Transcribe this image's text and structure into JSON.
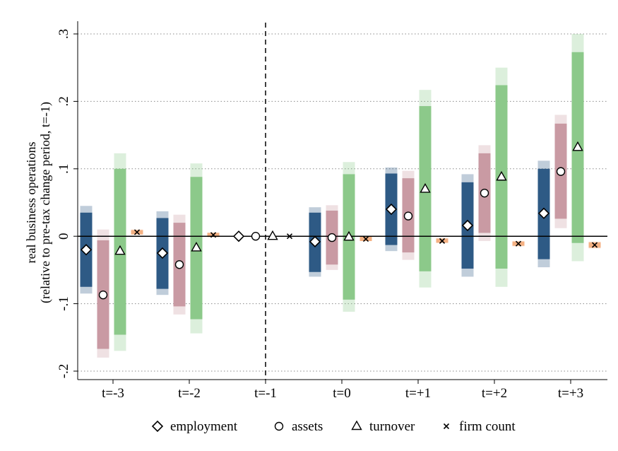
{
  "chart_data": {
    "type": "bar",
    "title": "",
    "xlabel": "",
    "ylabel": "real business operations",
    "ylabel_line2": "(relative to pre-tax change period, t=-1)",
    "ylim": [
      -0.2,
      0.3
    ],
    "yticks": [
      {
        "value": 0.3,
        "label": ".3"
      },
      {
        "value": 0.2,
        "label": ".2"
      },
      {
        "value": 0.1,
        "label": ".1"
      },
      {
        "value": 0,
        "label": "0"
      },
      {
        "value": -0.1,
        "label": "-.1"
      },
      {
        "value": -0.2,
        "label": "-.2"
      }
    ],
    "grid": "horizontal dotted",
    "reference_period": "t=-1",
    "categories": [
      "t=-3",
      "t=-2",
      "t=-1",
      "t=0",
      "t=+1",
      "t=+2",
      "t=+3"
    ],
    "series": [
      {
        "name": "employment",
        "marker": "diamond",
        "color": "#2e5a85",
        "points": [
          {
            "estimate": -0.02,
            "ci95": [
              -0.075,
              0.035
            ],
            "ci99": [
              -0.085,
              0.045
            ]
          },
          {
            "estimate": -0.025,
            "ci95": [
              -0.078,
              0.027
            ],
            "ci99": [
              -0.087,
              0.037
            ]
          },
          {
            "estimate": 0,
            "ci95": null,
            "ci99": null
          },
          {
            "estimate": -0.008,
            "ci95": [
              -0.053,
              0.035
            ],
            "ci99": [
              -0.06,
              0.043
            ]
          },
          {
            "estimate": 0.04,
            "ci95": [
              -0.013,
              0.093
            ],
            "ci99": [
              -0.022,
              0.102
            ]
          },
          {
            "estimate": 0.016,
            "ci95": [
              -0.048,
              0.08
            ],
            "ci99": [
              -0.06,
              0.092
            ]
          },
          {
            "estimate": 0.034,
            "ci95": [
              -0.034,
              0.1
            ],
            "ci99": [
              -0.046,
              0.112
            ]
          }
        ]
      },
      {
        "name": "assets",
        "marker": "circle",
        "color": "#c99aa3",
        "points": [
          {
            "estimate": -0.087,
            "ci95": [
              -0.167,
              -0.006
            ],
            "ci99": [
              -0.18,
              0.01
            ]
          },
          {
            "estimate": -0.042,
            "ci95": [
              -0.104,
              0.02
            ],
            "ci99": [
              -0.116,
              0.032
            ]
          },
          {
            "estimate": 0,
            "ci95": null,
            "ci99": null
          },
          {
            "estimate": -0.002,
            "ci95": [
              -0.042,
              0.038
            ],
            "ci99": [
              -0.05,
              0.046
            ]
          },
          {
            "estimate": 0.03,
            "ci95": [
              -0.024,
              0.086
            ],
            "ci99": [
              -0.035,
              0.097
            ]
          },
          {
            "estimate": 0.064,
            "ci95": [
              0.005,
              0.123
            ],
            "ci99": [
              -0.007,
              0.135
            ]
          },
          {
            "estimate": 0.096,
            "ci95": [
              0.026,
              0.167
            ],
            "ci99": [
              0.012,
              0.18
            ]
          }
        ]
      },
      {
        "name": "turnover",
        "marker": "triangle",
        "color": "#8cc98a",
        "points": [
          {
            "estimate": -0.022,
            "ci95": [
              -0.146,
              0.1
            ],
            "ci99": [
              -0.17,
              0.123
            ]
          },
          {
            "estimate": -0.017,
            "ci95": [
              -0.123,
              0.088
            ],
            "ci99": [
              -0.144,
              0.108
            ]
          },
          {
            "estimate": 0,
            "ci95": null,
            "ci99": null
          },
          {
            "estimate": -0.001,
            "ci95": [
              -0.094,
              0.092
            ],
            "ci99": [
              -0.112,
              0.11
            ]
          },
          {
            "estimate": 0.07,
            "ci95": [
              -0.052,
              0.193
            ],
            "ci99": [
              -0.076,
              0.217
            ]
          },
          {
            "estimate": 0.088,
            "ci95": [
              -0.048,
              0.224
            ],
            "ci99": [
              -0.075,
              0.25
            ]
          },
          {
            "estimate": 0.132,
            "ci95": [
              -0.01,
              0.273
            ],
            "ci99": [
              -0.037,
              0.3
            ]
          }
        ]
      },
      {
        "name": "firm count",
        "marker": "x",
        "color": "#f4b183",
        "points": [
          {
            "estimate": 0.006,
            "ci95": [
              0.003,
              0.009
            ],
            "ci99": [
              0.002,
              0.01
            ]
          },
          {
            "estimate": 0.002,
            "ci95": [
              0.0,
              0.004
            ],
            "ci99": [
              -0.001,
              0.005
            ]
          },
          {
            "estimate": 0,
            "ci95": null,
            "ci99": null
          },
          {
            "estimate": -0.004,
            "ci95": [
              -0.006,
              -0.002
            ],
            "ci99": [
              -0.007,
              -0.001
            ]
          },
          {
            "estimate": -0.007,
            "ci95": [
              -0.009,
              -0.004
            ],
            "ci99": [
              -0.01,
              -0.003
            ]
          },
          {
            "estimate": -0.011,
            "ci95": [
              -0.014,
              -0.008
            ],
            "ci99": [
              -0.015,
              -0.007
            ]
          },
          {
            "estimate": -0.013,
            "ci95": [
              -0.017,
              -0.009
            ],
            "ci99": [
              -0.018,
              -0.008
            ]
          }
        ]
      }
    ],
    "legend": {
      "position": "bottom",
      "items": [
        {
          "label": "employment",
          "symbol": "◇"
        },
        {
          "label": "assets",
          "symbol": "○"
        },
        {
          "label": "turnover",
          "symbol": "△"
        },
        {
          "label": "firm count",
          "symbol": "×"
        }
      ]
    }
  }
}
